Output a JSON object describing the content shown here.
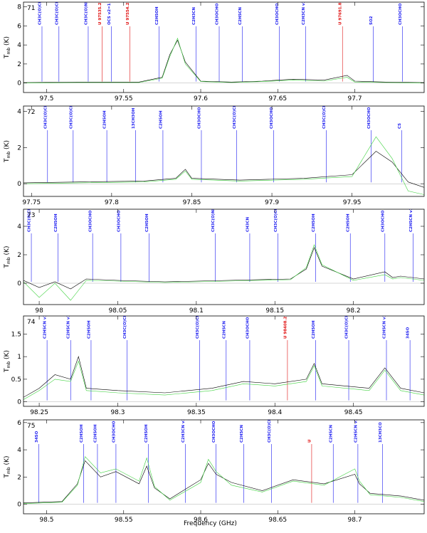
{
  "figure": {
    "xlabel": "Frequency (GHz)",
    "ylabel": "T",
    "ylabel_sub": "mb",
    "ylabel_unit": "(K)"
  },
  "colors": {
    "observed": "#000000",
    "model": "#3fd23f",
    "line_marker": "#1a1af0",
    "unidentified_marker": "#e01010"
  },
  "chart_data": [
    {
      "type": "line",
      "panel": "71",
      "xlim": [
        97.485,
        97.745
      ],
      "ylim": [
        -1,
        8.5
      ],
      "xticks": [
        97.5,
        97.55,
        97.6,
        97.65,
        97.7
      ],
      "yticks": [
        0,
        2,
        4,
        6,
        8
      ],
      "series": [
        {
          "role": "observed",
          "x": [
            97.485,
            97.52,
            97.56,
            97.575,
            97.58,
            97.585,
            97.59,
            97.6,
            97.62,
            97.64,
            97.66,
            97.68,
            97.695,
            97.7,
            97.72,
            97.745
          ],
          "y": [
            0.05,
            0.1,
            0.1,
            0.6,
            3.0,
            4.5,
            2.2,
            0.2,
            0.1,
            0.2,
            0.4,
            0.3,
            0.8,
            0.2,
            0.1,
            0.05
          ]
        },
        {
          "role": "model",
          "x": [
            97.485,
            97.52,
            97.56,
            97.575,
            97.58,
            97.585,
            97.59,
            97.6,
            97.62,
            97.64,
            97.66,
            97.68,
            97.695,
            97.7,
            97.72,
            97.745
          ],
          "y": [
            0.0,
            0.05,
            0.05,
            0.5,
            2.8,
            4.7,
            2.0,
            0.15,
            0.05,
            0.15,
            0.3,
            0.2,
            0.6,
            0.1,
            0.05,
            0.0
          ]
        }
      ],
      "markers": [
        {
          "x": 97.497,
          "label": "CH3C(O)CH3",
          "color": "blue"
        },
        {
          "x": 97.508,
          "label": "CH3C(O)CH3",
          "color": "blue"
        },
        {
          "x": 97.527,
          "label": "CH3C(O)NH2",
          "color": "blue"
        },
        {
          "x": 97.536,
          "label": "U 97535.27",
          "color": "red"
        },
        {
          "x": 97.542,
          "label": "OCS v2=1",
          "color": "blue"
        },
        {
          "x": 97.554,
          "label": "U 97554.28",
          "color": "red"
        },
        {
          "x": 97.573,
          "label": "C2H5OH",
          "color": "blue"
        },
        {
          "x": 97.597,
          "label": "C2H3CN",
          "color": "blue"
        },
        {
          "x": 97.612,
          "label": "CH3OCHO",
          "color": "blue"
        },
        {
          "x": 97.627,
          "label": "C2H5CN",
          "color": "blue"
        },
        {
          "x": 97.651,
          "label": "CH3OCHO",
          "color": "blue"
        },
        {
          "x": 97.668,
          "label": "C2H3CN v11=1",
          "color": "blue"
        },
        {
          "x": 97.692,
          "label": "U 97691.8",
          "color": "red"
        },
        {
          "x": 97.712,
          "label": "SO2",
          "color": "blue"
        },
        {
          "x": 97.731,
          "label": "CH3OCHO",
          "color": "blue"
        }
      ]
    },
    {
      "type": "line",
      "panel": "72",
      "xlim": [
        97.745,
        97.995
      ],
      "ylim": [
        -0.7,
        4.3
      ],
      "xticks": [
        97.75,
        97.8,
        97.85,
        97.9,
        97.95
      ],
      "yticks": [
        0,
        2,
        4
      ],
      "series": [
        {
          "role": "observed",
          "x": [
            97.745,
            97.78,
            97.82,
            97.84,
            97.846,
            97.85,
            97.88,
            97.92,
            97.95,
            97.965,
            97.975,
            97.985,
            97.995
          ],
          "y": [
            0.05,
            0.1,
            0.15,
            0.3,
            0.8,
            0.3,
            0.2,
            0.3,
            0.5,
            1.8,
            1.2,
            0.1,
            -0.2
          ]
        },
        {
          "role": "model",
          "x": [
            97.745,
            97.78,
            97.82,
            97.84,
            97.846,
            97.85,
            97.88,
            97.92,
            97.95,
            97.965,
            97.975,
            97.985,
            97.995
          ],
          "y": [
            0.0,
            0.05,
            0.1,
            0.25,
            0.7,
            0.25,
            0.15,
            0.25,
            0.4,
            2.6,
            1.4,
            -0.4,
            -0.6
          ]
        }
      ],
      "markers": [
        {
          "x": 97.76,
          "label": "CH3C(O)CH3",
          "color": "blue"
        },
        {
          "x": 97.776,
          "label": "CH3C(O)CH3",
          "color": "blue"
        },
        {
          "x": 97.797,
          "label": "C2H5OH",
          "color": "blue"
        },
        {
          "x": 97.815,
          "label": "13CH3OH",
          "color": "blue"
        },
        {
          "x": 97.832,
          "label": "C2H5OH",
          "color": "blue"
        },
        {
          "x": 97.856,
          "label": "CH3OCHO",
          "color": "blue"
        },
        {
          "x": 97.878,
          "label": "CH3C(O)CH3",
          "color": "blue"
        },
        {
          "x": 97.901,
          "label": "CH3OCHO",
          "color": "blue"
        },
        {
          "x": 97.934,
          "label": "CH3C(O)CH3",
          "color": "blue"
        },
        {
          "x": 97.962,
          "label": "CH3OCHO",
          "color": "blue"
        },
        {
          "x": 97.981,
          "label": "CS",
          "color": "blue"
        }
      ]
    },
    {
      "type": "line",
      "panel": "73",
      "xlim": [
        97.99,
        98.245
      ],
      "ylim": [
        -1.5,
        5.2
      ],
      "xticks": [
        98.0,
        98.05,
        98.1,
        98.15,
        98.2
      ],
      "yticks": [
        0,
        2,
        4
      ],
      "series": [
        {
          "role": "observed",
          "x": [
            97.99,
            98.0,
            98.01,
            98.02,
            98.03,
            98.05,
            98.08,
            98.12,
            98.16,
            98.17,
            98.175,
            98.18,
            98.2,
            98.22,
            98.225,
            98.23,
            98.245
          ],
          "y": [
            0.2,
            -0.3,
            0.1,
            -0.4,
            0.3,
            0.2,
            0.1,
            0.2,
            0.3,
            1.0,
            2.5,
            1.2,
            0.3,
            0.8,
            0.4,
            0.5,
            0.3
          ]
        },
        {
          "role": "model",
          "x": [
            97.99,
            98.0,
            98.01,
            98.02,
            98.03,
            98.05,
            98.08,
            98.12,
            98.16,
            98.17,
            98.175,
            98.18,
            98.2,
            98.22,
            98.225,
            98.23,
            98.245
          ],
          "y": [
            0.1,
            -1.0,
            0.0,
            -1.2,
            0.2,
            0.15,
            0.05,
            0.15,
            0.25,
            1.1,
            2.7,
            1.3,
            0.2,
            0.6,
            0.3,
            0.4,
            0.2
          ]
        }
      ],
      "markers": [
        {
          "x": 97.995,
          "label": "CH3C(O)CH3",
          "color": "blue"
        },
        {
          "x": 98.012,
          "label": "C2H5OH",
          "color": "blue"
        },
        {
          "x": 98.034,
          "label": "CH3OCHO",
          "color": "blue"
        },
        {
          "x": 98.052,
          "label": "CH3OCHO",
          "color": "blue"
        },
        {
          "x": 98.07,
          "label": "C2H5OH",
          "color": "blue"
        },
        {
          "x": 98.112,
          "label": "CH3C(O)NH2",
          "color": "blue"
        },
        {
          "x": 98.134,
          "label": "CH3CN",
          "color": "blue"
        },
        {
          "x": 98.152,
          "label": "CH3C(O)CH3",
          "color": "blue"
        },
        {
          "x": 98.176,
          "label": "C2H5OH",
          "color": "blue"
        },
        {
          "x": 98.198,
          "label": "C2H5OH",
          "color": "blue"
        },
        {
          "x": 98.22,
          "label": "CH3OCHO",
          "color": "blue"
        },
        {
          "x": 98.238,
          "label": "C2H5CN v13=1",
          "color": "blue"
        }
      ]
    },
    {
      "type": "line",
      "panel": "74",
      "xlim": [
        98.24,
        98.495
      ],
      "ylim": [
        -0.1,
        1.9
      ],
      "xticks": [
        98.25,
        98.3,
        98.35,
        98.4,
        98.45
      ],
      "yticks": [
        0,
        0.5,
        1,
        1.5
      ],
      "series": [
        {
          "role": "observed",
          "x": [
            98.24,
            98.25,
            98.26,
            98.27,
            98.275,
            98.28,
            98.3,
            98.33,
            98.36,
            98.38,
            98.4,
            98.42,
            98.425,
            98.43,
            98.46,
            98.47,
            98.48,
            98.495
          ],
          "y": [
            0.1,
            0.3,
            0.6,
            0.5,
            1.0,
            0.3,
            0.25,
            0.2,
            0.3,
            0.45,
            0.4,
            0.5,
            0.85,
            0.4,
            0.3,
            0.75,
            0.3,
            0.2
          ]
        },
        {
          "role": "model",
          "x": [
            98.24,
            98.25,
            98.26,
            98.27,
            98.275,
            98.28,
            98.3,
            98.33,
            98.36,
            98.38,
            98.4,
            98.42,
            98.425,
            98.43,
            98.46,
            98.47,
            98.48,
            98.495
          ],
          "y": [
            0.05,
            0.25,
            0.5,
            0.45,
            0.9,
            0.25,
            0.2,
            0.15,
            0.25,
            0.4,
            0.35,
            0.45,
            0.8,
            0.35,
            0.25,
            0.7,
            0.25,
            0.15
          ]
        }
      ],
      "markers": [
        {
          "x": 98.255,
          "label": "C2H5CN v13=1",
          "color": "blue"
        },
        {
          "x": 98.27,
          "label": "C2H5CN v13=1",
          "color": "blue"
        },
        {
          "x": 98.283,
          "label": "C2H5OH",
          "color": "blue"
        },
        {
          "x": 98.306,
          "label": "CH3C(O)CH3",
          "color": "blue"
        },
        {
          "x": 98.352,
          "label": "CH3C(O)CH3",
          "color": "blue"
        },
        {
          "x": 98.369,
          "label": "C2H5CN",
          "color": "blue"
        },
        {
          "x": 98.384,
          "label": "CH3OCHO",
          "color": "blue"
        },
        {
          "x": 98.408,
          "label": "U 98408.27",
          "color": "red"
        },
        {
          "x": 98.426,
          "label": "C2H5OH",
          "color": "blue"
        },
        {
          "x": 98.447,
          "label": "CH3C(O)CH3",
          "color": "blue"
        },
        {
          "x": 98.471,
          "label": "C2H5CN v13=1",
          "color": "blue"
        },
        {
          "x": 98.486,
          "label": "34SO",
          "color": "blue"
        }
      ]
    },
    {
      "type": "line",
      "panel": "75",
      "xlim": [
        98.485,
        98.745
      ],
      "ylim": [
        -0.7,
        6.2
      ],
      "xticks": [
        98.5,
        98.55,
        98.6,
        98.65,
        98.7
      ],
      "yticks": [
        0,
        2,
        4,
        6
      ],
      "series": [
        {
          "role": "observed",
          "x": [
            98.485,
            98.51,
            98.52,
            98.525,
            98.535,
            98.545,
            98.56,
            98.565,
            98.57,
            98.58,
            98.6,
            98.605,
            98.61,
            98.62,
            98.64,
            98.66,
            98.68,
            98.7,
            98.703,
            98.71,
            98.73,
            98.745
          ],
          "y": [
            0.1,
            0.2,
            1.5,
            3.2,
            2.0,
            2.4,
            1.5,
            2.8,
            1.2,
            0.4,
            1.8,
            3.0,
            2.2,
            1.6,
            1.0,
            1.8,
            1.5,
            2.2,
            1.5,
            0.8,
            0.6,
            0.3
          ]
        },
        {
          "role": "model",
          "x": [
            98.485,
            98.51,
            98.52,
            98.525,
            98.535,
            98.545,
            98.56,
            98.565,
            98.57,
            98.58,
            98.6,
            98.605,
            98.61,
            98.62,
            98.64,
            98.66,
            98.68,
            98.7,
            98.703,
            98.71,
            98.73,
            98.745
          ],
          "y": [
            0.05,
            0.15,
            1.4,
            3.5,
            2.3,
            2.6,
            1.7,
            3.4,
            1.3,
            0.3,
            1.6,
            3.3,
            2.4,
            1.4,
            0.9,
            1.7,
            1.4,
            2.6,
            1.7,
            0.7,
            0.5,
            0.2
          ]
        }
      ],
      "markers": [
        {
          "x": 98.495,
          "label": "34SO",
          "color": "blue"
        },
        {
          "x": 98.524,
          "label": "C2H5OH",
          "color": "blue"
        },
        {
          "x": 98.533,
          "label": "C2H5OH",
          "color": "blue"
        },
        {
          "x": 98.545,
          "label": "CH3OCHO",
          "color": "blue"
        },
        {
          "x": 98.566,
          "label": "C2H5OH",
          "color": "blue"
        },
        {
          "x": 98.59,
          "label": "C2H3CN v11=1",
          "color": "blue"
        },
        {
          "x": 98.61,
          "label": "CH3OCHO",
          "color": "blue"
        },
        {
          "x": 98.628,
          "label": "C2H5CN",
          "color": "blue"
        },
        {
          "x": 98.646,
          "label": "CH3C(O)CH3",
          "color": "blue"
        },
        {
          "x": 98.672,
          "label": "U",
          "color": "red"
        },
        {
          "x": 98.686,
          "label": "C2H5CN",
          "color": "blue"
        },
        {
          "x": 98.702,
          "label": "C2H5CN v13=1",
          "color": "blue"
        },
        {
          "x": 98.718,
          "label": "13CH3CO",
          "color": "blue"
        }
      ]
    }
  ]
}
